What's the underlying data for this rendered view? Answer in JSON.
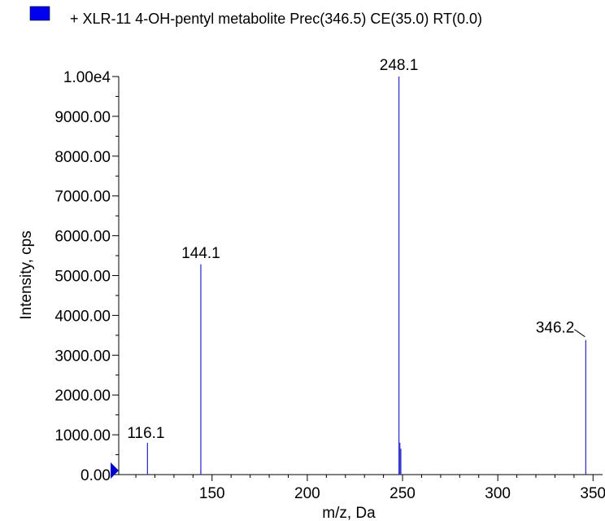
{
  "chart_data": {
    "type": "bar",
    "legend": {
      "label": "+ XLR-11 4-OH-pentyl metabolite Prec(346.5) CE(35.0) RT(0.0)",
      "color": "#0000ee",
      "placement": "top"
    },
    "xlabel": "m/z, Da",
    "ylabel": "Intensity, cps",
    "xlim": [
      101,
      355
    ],
    "ylim": [
      0,
      10000
    ],
    "x_ticks": [
      150,
      200,
      250,
      300,
      350
    ],
    "x_tick_labels": [
      "150",
      "200",
      "250",
      "300",
      "350"
    ],
    "y_ticks": [
      0,
      1000,
      2000,
      3000,
      4000,
      5000,
      6000,
      7000,
      8000,
      9000,
      10000
    ],
    "y_tick_labels": [
      "0.00",
      "1000.00",
      "2000.00",
      "3000.00",
      "4000.00",
      "5000.00",
      "6000.00",
      "7000.00",
      "8000.00",
      "9000.00",
      "1.00e4"
    ],
    "peak_color": "#3333cc",
    "peaks": [
      {
        "mz": 116.1,
        "intensity": 800,
        "label": "116.1"
      },
      {
        "mz": 144.1,
        "intensity": 5280,
        "label": "144.1"
      },
      {
        "mz": 248.1,
        "intensity": 10000,
        "label": "248.1"
      },
      {
        "mz": 248.6,
        "intensity": 800,
        "label": ""
      },
      {
        "mz": 249.1,
        "intensity": 650,
        "label": ""
      },
      {
        "mz": 346.2,
        "intensity": 3380,
        "label": "346.2"
      }
    ]
  }
}
